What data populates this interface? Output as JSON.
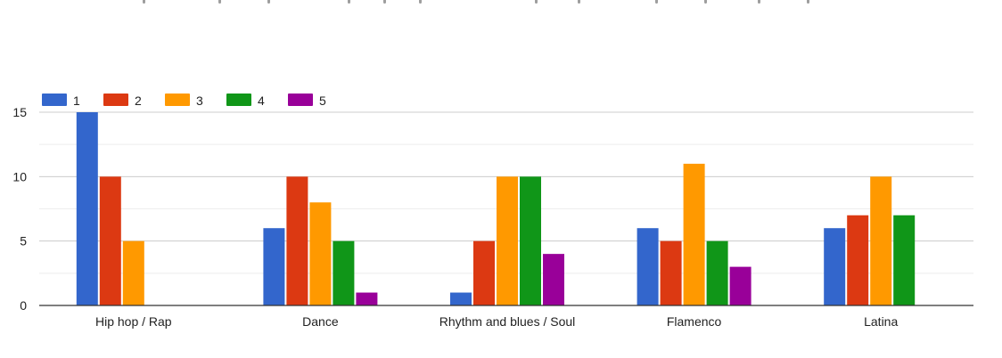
{
  "chart_data": {
    "type": "bar",
    "title": "",
    "xlabel": "",
    "ylabel": "",
    "categories": [
      "Hip hop / Rap",
      "Dance",
      "Rhythm and blues / Soul",
      "Flamenco",
      "Latina"
    ],
    "series": [
      {
        "name": "1",
        "color": "#3366cc",
        "values": [
          15,
          6,
          1,
          6,
          6
        ]
      },
      {
        "name": "2",
        "color": "#dc3912",
        "values": [
          10,
          10,
          5,
          5,
          7
        ]
      },
      {
        "name": "3",
        "color": "#ff9900",
        "values": [
          5,
          8,
          10,
          11,
          10
        ]
      },
      {
        "name": "4",
        "color": "#109618",
        "values": [
          0,
          5,
          10,
          5,
          7
        ]
      },
      {
        "name": "5",
        "color": "#990099",
        "values": [
          0,
          1,
          4,
          3,
          0
        ]
      }
    ],
    "ylim": [
      0,
      15
    ],
    "yticks": [
      0,
      5,
      10,
      15
    ],
    "grid": true,
    "legend": "top-left"
  }
}
